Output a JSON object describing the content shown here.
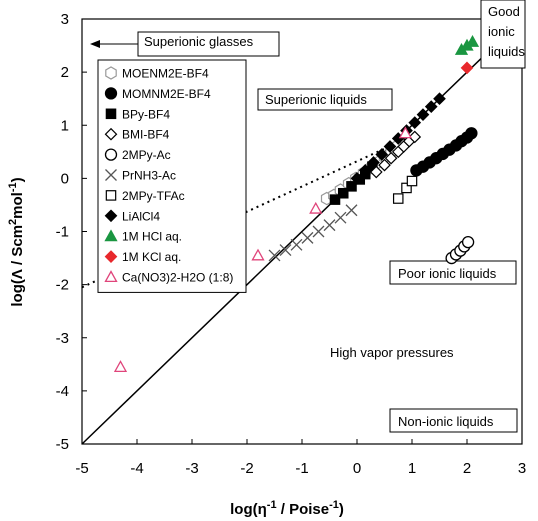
{
  "chart_data": {
    "type": "scatter",
    "title": "",
    "xlabel": {
      "main": "log(η",
      "sup1": "-1",
      "mid": " / Poise",
      "sup2": "-1",
      "end": ")"
    },
    "ylabel": {
      "main": "log(Λ  / Scm",
      "sup1": "2",
      "mid": "mol",
      "sup2": "-1",
      "end": ")"
    },
    "xlim": [
      -5,
      3
    ],
    "ylim": [
      -5,
      3
    ],
    "x_ticks": [
      "-5",
      "-4",
      "-3",
      "-2",
      "-1",
      "0",
      "1",
      "2",
      "3"
    ],
    "y_ticks": [
      "-5",
      "-4",
      "-3",
      "-2",
      "-1",
      "0",
      "1",
      "2",
      "3"
    ],
    "grid": false,
    "legend_position": "upper-left",
    "reference_line": {
      "style": "solid",
      "points": [
        [
          -5,
          -5
        ],
        [
          3,
          3
        ]
      ]
    },
    "dotted_line": {
      "style": "dotted",
      "points": [
        [
          -5,
          -2.05
        ],
        [
          1.05,
          0.82
        ]
      ]
    },
    "region_labels": [
      {
        "key": "glasses",
        "text": "Superionic glasses",
        "boxed": true,
        "arrow": true
      },
      {
        "key": "good",
        "lines": [
          "Good",
          "ionic",
          "liquids"
        ],
        "boxed": true
      },
      {
        "key": "superliquids",
        "text": "Superionic liquids",
        "boxed": true
      },
      {
        "key": "poor",
        "text": "Poor ionic liquids",
        "boxed": true
      },
      {
        "key": "vapor",
        "text": "High vapor pressures",
        "boxed": false
      },
      {
        "key": "nonionic",
        "text": "Non-ionic liquids",
        "boxed": true
      }
    ],
    "series": [
      {
        "name": "MOENM2E-BF4",
        "marker": "hexagon-open",
        "color": "#999999",
        "x": [
          -0.55,
          -0.42,
          -0.3,
          -0.15,
          -0.02,
          0.12,
          0.25,
          0.38,
          0.5,
          0.62,
          0.72
        ],
        "y": [
          -0.38,
          -0.32,
          -0.22,
          -0.1,
          0.0,
          0.1,
          0.2,
          0.3,
          0.4,
          0.5,
          0.6
        ]
      },
      {
        "name": "MOMNM2E-BF4",
        "marker": "circle-filled",
        "color": "#000000",
        "x": [
          1.08,
          1.2,
          1.32,
          1.44,
          1.56,
          1.68,
          1.8,
          1.9,
          2.0,
          2.08
        ],
        "y": [
          0.15,
          0.22,
          0.3,
          0.38,
          0.46,
          0.54,
          0.62,
          0.7,
          0.77,
          0.85
        ]
      },
      {
        "name": "BPy-BF4",
        "marker": "square-filled",
        "color": "#000000",
        "x": [
          -0.4,
          -0.25,
          -0.1,
          0.05,
          0.15,
          0.28
        ],
        "y": [
          -0.4,
          -0.28,
          -0.15,
          -0.02,
          0.08,
          0.22
        ]
      },
      {
        "name": "BMI-BF4",
        "marker": "diamond-open",
        "color": "#000000",
        "x": [
          0.35,
          0.5,
          0.62,
          0.75,
          0.85,
          0.95,
          1.05
        ],
        "y": [
          0.12,
          0.25,
          0.38,
          0.5,
          0.6,
          0.7,
          0.78
        ]
      },
      {
        "name": "2MPy-Ac",
        "marker": "circle-open",
        "color": "#000000",
        "x": [
          1.72,
          1.8,
          1.88,
          1.95,
          2.02
        ],
        "y": [
          -1.5,
          -1.43,
          -1.36,
          -1.28,
          -1.2
        ]
      },
      {
        "name": "PrNH3-Ac",
        "marker": "x",
        "color": "#555555",
        "x": [
          -1.5,
          -1.3,
          -1.1,
          -0.9,
          -0.7,
          -0.5,
          -0.3,
          -0.1
        ],
        "y": [
          -1.45,
          -1.35,
          -1.25,
          -1.12,
          -1.0,
          -0.88,
          -0.74,
          -0.6
        ]
      },
      {
        "name": "2MPy-TFAc",
        "marker": "square-open",
        "color": "#000000",
        "x": [
          0.75,
          0.9,
          1.0
        ],
        "y": [
          -0.38,
          -0.18,
          -0.05
        ]
      },
      {
        "name": "LiAlCl4",
        "marker": "diamond-filled",
        "color": "#000000",
        "x": [
          0.0,
          0.15,
          0.3,
          0.45,
          0.6,
          0.75,
          0.9,
          1.05,
          1.2,
          1.35,
          1.5
        ],
        "y": [
          0.0,
          0.15,
          0.3,
          0.45,
          0.6,
          0.75,
          0.9,
          1.05,
          1.2,
          1.35,
          1.5
        ]
      },
      {
        "name": "1M HCl aq.",
        "marker": "triangle-filled",
        "color": "#1a9641",
        "x": [
          1.9,
          2.0,
          2.1
        ],
        "y": [
          2.42,
          2.5,
          2.57
        ]
      },
      {
        "name": "1M KCl aq.",
        "marker": "diamond-filled",
        "color": "#e8282c",
        "x": [
          2.0
        ],
        "y": [
          2.08
        ]
      },
      {
        "name": "Ca(NO3)2-H2O (1:8)",
        "marker": "triangle-open",
        "color": "#e0457b",
        "x": [
          -4.3,
          -1.8,
          -0.75,
          0.88
        ],
        "y": [
          -3.55,
          -1.45,
          -0.57,
          0.85
        ]
      }
    ]
  }
}
